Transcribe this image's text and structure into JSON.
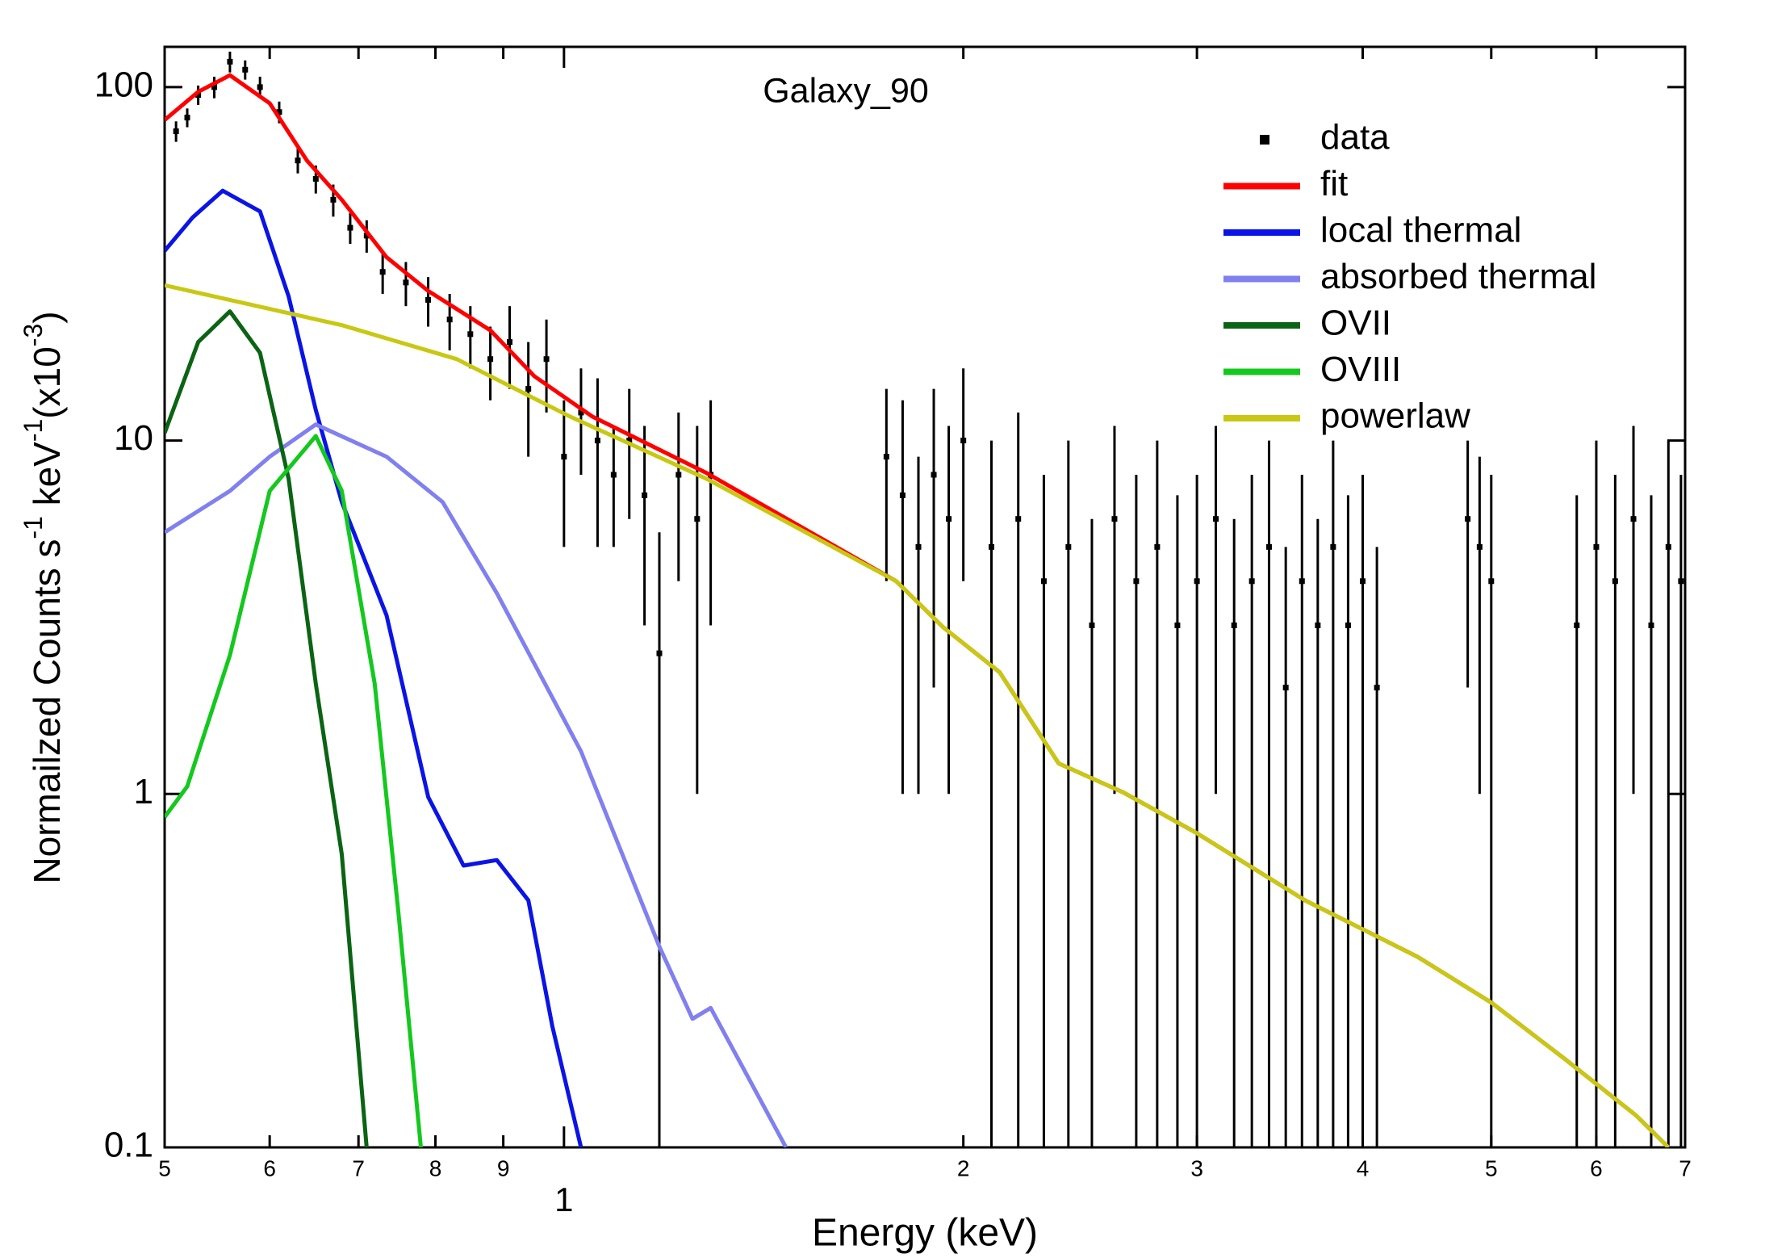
{
  "chart_data": {
    "type": "line",
    "title": "Galaxy_90",
    "xlabel": "Energy (keV)",
    "ylabel": [
      "Normailzed Counts s",
      "-1",
      " keV",
      "-1",
      "(x10",
      "-3",
      ")"
    ],
    "xscale": "log",
    "yscale": "log",
    "xlim": [
      0.5,
      7
    ],
    "ylim": [
      0.1,
      130
    ],
    "xticks": [
      {
        "value": 0.5,
        "label": "5"
      },
      {
        "value": 0.6,
        "label": "6"
      },
      {
        "value": 0.7,
        "label": "7"
      },
      {
        "value": 0.8,
        "label": "8"
      },
      {
        "value": 0.9,
        "label": "9"
      },
      1,
      2,
      3,
      4,
      5,
      6,
      7
    ],
    "yticks": [
      0.1,
      1,
      10,
      100
    ],
    "legend": "upper right",
    "series": [
      {
        "name": "data",
        "color": "#000000",
        "x": [
          0.51,
          0.52,
          0.53,
          0.545,
          0.56,
          0.575,
          0.59,
          0.61,
          0.63,
          0.65,
          0.67,
          0.69,
          0.71,
          0.73,
          0.76,
          0.79,
          0.82,
          0.85,
          0.88,
          0.91,
          0.94,
          0.97,
          1.0,
          1.03,
          1.06,
          1.09,
          1.12,
          1.15,
          1.18,
          1.22,
          1.26,
          1.29,
          1.75,
          1.8,
          1.85,
          1.9,
          1.95,
          2.0,
          2.1,
          2.2,
          2.3,
          2.4,
          2.5,
          2.6,
          2.7,
          2.8,
          2.9,
          3.0,
          3.1,
          3.2,
          3.3,
          3.4,
          3.5,
          3.6,
          3.7,
          3.8,
          3.9,
          4.0,
          4.1,
          4.8,
          4.9,
          5.0,
          5.8,
          6.0,
          6.2,
          6.4,
          6.6,
          6.8,
          6.95
        ],
        "values": [
          75,
          82,
          95,
          100,
          118,
          112,
          100,
          85,
          62,
          55,
          48,
          40,
          38,
          30,
          28,
          25,
          22,
          20,
          17,
          19,
          14,
          17,
          9,
          12,
          10,
          8,
          10,
          7,
          2.5,
          8,
          6,
          8,
          9,
          7,
          5,
          8,
          6,
          10,
          5,
          6,
          4,
          5,
          3,
          6,
          4,
          5,
          3,
          4,
          6,
          3,
          4,
          5,
          2,
          4,
          3,
          5,
          3,
          4,
          2,
          6,
          5,
          4,
          3,
          5,
          4,
          6,
          3,
          5,
          4
        ],
        "errors": [
          5,
          5,
          6,
          7,
          8,
          7,
          7,
          6,
          5,
          5,
          5,
          4,
          4,
          4,
          4,
          4,
          4,
          4,
          4,
          5,
          5,
          5,
          4,
          4,
          5,
          3,
          4,
          4,
          3,
          4,
          5,
          5,
          5,
          6,
          4,
          6,
          5,
          6,
          5,
          6,
          4,
          5,
          3,
          5,
          4,
          5,
          4,
          4,
          5,
          3,
          4,
          5,
          3,
          4,
          3,
          5,
          4,
          4,
          3,
          4,
          4,
          4,
          4,
          5,
          4,
          5,
          4,
          5,
          4
        ]
      },
      {
        "name": "fit",
        "color": "#ff0000",
        "x": [
          0.5,
          0.53,
          0.56,
          0.6,
          0.64,
          0.68,
          0.735,
          0.79,
          0.88,
          0.95,
          1.05,
          1.28,
          1.78,
          1.93,
          2.13,
          2.36,
          2.64,
          2.99,
          3.62,
          4.4,
          5.0,
          5.68,
          6.43,
          6.8
        ],
        "values": [
          80.7,
          97,
          108,
          90,
          62,
          48,
          33,
          26.5,
          20.5,
          15.2,
          11.7,
          8.1,
          4.0,
          2.97,
          2.21,
          1.22,
          1.01,
          0.78,
          0.5,
          0.346,
          0.257,
          0.178,
          0.123,
          0.1
        ]
      },
      {
        "name": "local thermal",
        "color": "#0a14e6",
        "x": [
          0.5,
          0.525,
          0.553,
          0.59,
          0.62,
          0.65,
          0.68,
          0.735,
          0.79,
          0.84,
          0.89,
          0.94,
          0.98,
          1.03
        ],
        "values": [
          34.4,
          42.8,
          50.9,
          44.5,
          25.6,
          12.2,
          6.7,
          3.2,
          0.98,
          0.627,
          0.65,
          0.5,
          0.22,
          0.1
        ]
      },
      {
        "name": "absorbed thermal",
        "color": "#8080f0",
        "x": [
          0.5,
          0.56,
          0.6,
          0.65,
          0.735,
          0.81,
          0.89,
          1.03,
          1.18,
          1.25,
          1.29,
          1.47
        ],
        "values": [
          5.5,
          7.2,
          9.0,
          11.1,
          9.0,
          6.7,
          3.7,
          1.32,
          0.37,
          0.231,
          0.248,
          0.1
        ]
      },
      {
        "name": "OVII",
        "color": "#0a6414",
        "x": [
          0.5,
          0.53,
          0.56,
          0.59,
          0.62,
          0.65,
          0.68,
          0.71
        ],
        "values": [
          10.5,
          19.0,
          23.2,
          17.7,
          7.8,
          2.05,
          0.675,
          0.1
        ]
      },
      {
        "name": "OVIII",
        "color": "#14c81e",
        "x": [
          0.5,
          0.52,
          0.56,
          0.6,
          0.65,
          0.68,
          0.72,
          0.75,
          0.78
        ],
        "values": [
          0.86,
          1.05,
          2.47,
          7.2,
          10.3,
          7.2,
          2.05,
          0.466,
          0.1
        ]
      },
      {
        "name": "powerlaw",
        "color": "#c8c814",
        "x": [
          0.5,
          0.68,
          0.83,
          1.01,
          1.28,
          1.78,
          1.93,
          2.13,
          2.36,
          2.64,
          2.99,
          3.62,
          4.4,
          5.0,
          5.68,
          6.43,
          6.8
        ],
        "values": [
          27.5,
          21.2,
          17,
          11.7,
          7.8,
          4.0,
          2.97,
          2.21,
          1.22,
          1.01,
          0.78,
          0.5,
          0.346,
          0.257,
          0.178,
          0.123,
          0.1
        ]
      }
    ]
  }
}
